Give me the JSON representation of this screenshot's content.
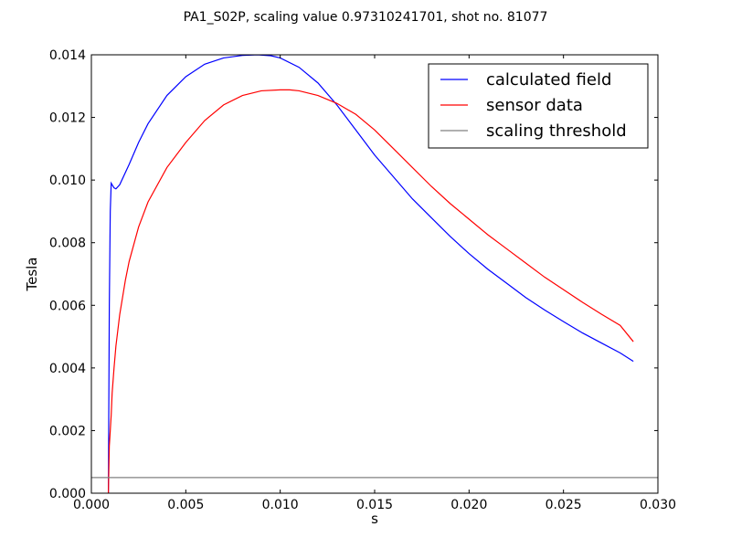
{
  "chart_data": {
    "type": "line",
    "title": "PA1_S02P, scaling value 0.97310241701, shot no. 81077",
    "xlabel": "s",
    "ylabel": "Tesla",
    "xlim": [
      0.0,
      0.03
    ],
    "ylim": [
      0.0,
      0.014
    ],
    "xticks": [
      "0.000",
      "0.005",
      "0.010",
      "0.015",
      "0.020",
      "0.025",
      "0.030"
    ],
    "yticks": [
      "0.000",
      "0.002",
      "0.004",
      "0.006",
      "0.008",
      "0.010",
      "0.012",
      "0.014"
    ],
    "grid": false,
    "legend_position": "top-right",
    "series": [
      {
        "name": "calculated field",
        "color": "#0000ff",
        "x": [
          0.0009,
          0.00095,
          0.001,
          0.00105,
          0.0011,
          0.0012,
          0.0013,
          0.0015,
          0.002,
          0.0025,
          0.003,
          0.004,
          0.005,
          0.006,
          0.007,
          0.008,
          0.0088,
          0.0095,
          0.01,
          0.011,
          0.012,
          0.013,
          0.014,
          0.015,
          0.016,
          0.017,
          0.018,
          0.019,
          0.02,
          0.021,
          0.022,
          0.023,
          0.024,
          0.025,
          0.026,
          0.027,
          0.028,
          0.0287
        ],
        "y": [
          0.0,
          0.006,
          0.009,
          0.0099,
          0.00985,
          0.00975,
          0.00972,
          0.00985,
          0.0105,
          0.0112,
          0.0118,
          0.0127,
          0.0133,
          0.0137,
          0.0139,
          0.01398,
          0.014,
          0.01397,
          0.0139,
          0.0136,
          0.0131,
          0.0124,
          0.0116,
          0.0108,
          0.0101,
          0.0094,
          0.0088,
          0.0082,
          0.00765,
          0.00715,
          0.0067,
          0.00625,
          0.00585,
          0.00548,
          0.00512,
          0.0048,
          0.00448,
          0.00421
        ]
      },
      {
        "name": "sensor data",
        "color": "#ff0000",
        "x": [
          0.0009,
          0.00095,
          0.001,
          0.00105,
          0.0011,
          0.00115,
          0.0012,
          0.0013,
          0.0015,
          0.0018,
          0.002,
          0.0025,
          0.003,
          0.004,
          0.005,
          0.006,
          0.007,
          0.008,
          0.009,
          0.01,
          0.0105,
          0.011,
          0.012,
          0.013,
          0.014,
          0.015,
          0.016,
          0.017,
          0.018,
          0.019,
          0.02,
          0.021,
          0.022,
          0.023,
          0.024,
          0.025,
          0.026,
          0.027,
          0.028,
          0.0287
        ],
        "y": [
          0.0,
          0.0015,
          0.002,
          0.0025,
          0.0032,
          0.0036,
          0.004,
          0.0047,
          0.0057,
          0.0068,
          0.0074,
          0.0085,
          0.0093,
          0.0104,
          0.0112,
          0.0119,
          0.0124,
          0.0127,
          0.01285,
          0.01288,
          0.01288,
          0.01285,
          0.0127,
          0.01245,
          0.0121,
          0.0116,
          0.011,
          0.0104,
          0.0098,
          0.00925,
          0.00875,
          0.00825,
          0.0078,
          0.00735,
          0.0069,
          0.0065,
          0.0061,
          0.00572,
          0.00536,
          0.00484
        ]
      },
      {
        "name": "scaling threshold",
        "color": "#808080",
        "x": [
          0.0,
          0.03
        ],
        "y": [
          0.0005,
          0.0005
        ]
      }
    ]
  }
}
